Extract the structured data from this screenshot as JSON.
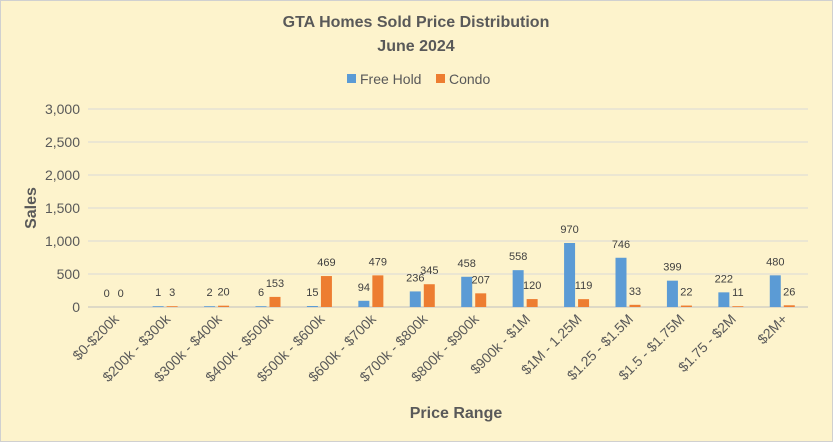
{
  "chart_data": {
    "type": "bar",
    "title": "GTA Homes Sold Price Distribution",
    "subtitle": "June 2024",
    "xlabel": "Price Range",
    "ylabel": "Sales",
    "ylim": [
      0,
      3000
    ],
    "yticks": [
      0,
      500,
      1000,
      1500,
      2000,
      2500,
      3000
    ],
    "ytick_labels": [
      "0",
      "500",
      "1,000",
      "1,500",
      "2,000",
      "2,500",
      "3,000"
    ],
    "grid": "horizontal",
    "legend_position": "top",
    "categories": [
      "$0-$200k",
      "$200k - $300k",
      "$300k - $400k",
      "$400k - $500k",
      "$500k - $600k",
      "$600k - $700k",
      "$700k - $800k",
      "$800k - $900k",
      "$900k - $1M",
      "$1M - 1.25M",
      "$1.25 - $1.5M",
      "$1.5 - $1.75M",
      "$1.75 - $2M",
      "$2M+"
    ],
    "series": [
      {
        "name": "Free Hold",
        "color": "#5b9bd5",
        "values": [
          0,
          1,
          2,
          6,
          15,
          94,
          236,
          458,
          558,
          970,
          746,
          399,
          222,
          480
        ]
      },
      {
        "name": "Condo",
        "color": "#ed7d31",
        "values": [
          0,
          3,
          20,
          153,
          469,
          479,
          345,
          207,
          120,
          119,
          33,
          22,
          11,
          26
        ]
      }
    ]
  },
  "colors": {
    "background": "#fdf3cc",
    "gridline": "#d9d9d9",
    "text": "#595959"
  }
}
